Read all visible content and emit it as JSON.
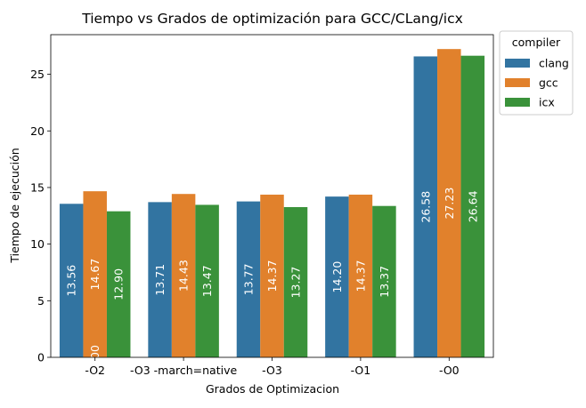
{
  "chart_data": {
    "type": "bar",
    "title": "Tiempo  vs Grados de optimización para GCC/CLang/icx",
    "xlabel": "Grados de Optimizacion",
    "ylabel": "Tiempo de ejecución",
    "ylim": [
      0,
      28.5
    ],
    "yticks": [
      0,
      5,
      10,
      15,
      20,
      25
    ],
    "categories": [
      "-O2",
      "-O3 -march=native",
      "-O3",
      "-O1",
      "-O0"
    ],
    "series": [
      {
        "name": "clang",
        "color": "#3274a1",
        "values": [
          13.56,
          13.71,
          13.77,
          14.2,
          26.58
        ]
      },
      {
        "name": "gcc",
        "color": "#e1812c",
        "values": [
          14.67,
          14.43,
          14.37,
          14.37,
          27.23
        ]
      },
      {
        "name": "icx",
        "color": "#3a923a",
        "values": [
          12.9,
          13.47,
          13.27,
          13.37,
          26.64
        ]
      }
    ],
    "bar_label_color": "#ffffff",
    "stray_labels": [
      {
        "text": "00",
        "category_index": 0,
        "series_index": 1,
        "value": 0
      }
    ],
    "legend": {
      "title": "compiler",
      "placement": "outside-top-right"
    },
    "grid": false
  }
}
